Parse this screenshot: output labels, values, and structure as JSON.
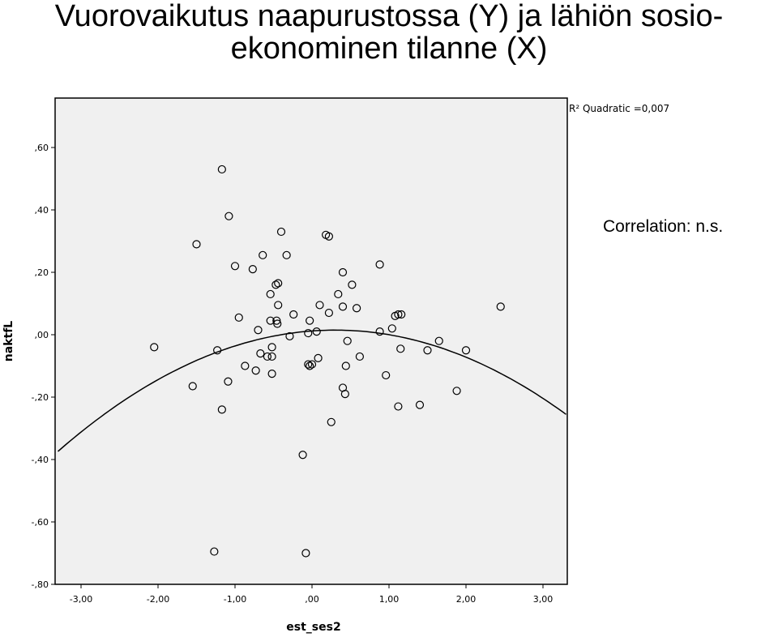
{
  "slide": {
    "title_line1": "Vuorovaikutus naapurustossa (Y) ja lähiön sosio-",
    "title_line2": "ekonominen tilanne (X)",
    "note": "Correlation: n.s."
  },
  "chart_data": {
    "type": "scatter",
    "xlabel": "est_ses2",
    "ylabel": "naktfL",
    "xlim": [
      -3.3,
      3.3
    ],
    "ylim": [
      -0.8,
      0.76
    ],
    "x_ticks": [
      -3,
      -2,
      -1,
      0,
      1,
      2,
      3
    ],
    "x_tick_labels": [
      "-3,00",
      "-2,00",
      "-1,00",
      ",00",
      "1,00",
      "2,00",
      "3,00"
    ],
    "y_ticks": [
      0.6,
      0.4,
      0.2,
      0,
      -0.2,
      -0.4,
      -0.6,
      -0.8
    ],
    "y_tick_labels": [
      ",60",
      ",40",
      ",20",
      ",00",
      "-,20",
      "-,40",
      "-,60",
      "-,80"
    ],
    "background": "#f0f0f0",
    "fit_label": "R² Quadratic =0,007",
    "fit": {
      "type": "quadratic",
      "a": -0.03,
      "b": 0.018,
      "c": 0.012
    },
    "points": [
      {
        "x": -1.17,
        "y": 0.53
      },
      {
        "x": -1.08,
        "y": 0.38
      },
      {
        "x": -1.5,
        "y": 0.29
      },
      {
        "x": -1.0,
        "y": 0.22
      },
      {
        "x": -0.4,
        "y": 0.33
      },
      {
        "x": -0.64,
        "y": 0.255
      },
      {
        "x": -0.33,
        "y": 0.255
      },
      {
        "x": -0.77,
        "y": 0.21
      },
      {
        "x": 0.18,
        "y": 0.32
      },
      {
        "x": 0.22,
        "y": 0.315
      },
      {
        "x": 0.4,
        "y": 0.2
      },
      {
        "x": 0.88,
        "y": 0.225
      },
      {
        "x": -0.47,
        "y": 0.16
      },
      {
        "x": -0.44,
        "y": 0.165
      },
      {
        "x": -0.54,
        "y": 0.13
      },
      {
        "x": 0.52,
        "y": 0.16
      },
      {
        "x": 0.34,
        "y": 0.13
      },
      {
        "x": -0.44,
        "y": 0.095
      },
      {
        "x": 0.1,
        "y": 0.095
      },
      {
        "x": 0.4,
        "y": 0.09
      },
      {
        "x": 0.58,
        "y": 0.085
      },
      {
        "x": -0.95,
        "y": 0.055
      },
      {
        "x": -0.24,
        "y": 0.065
      },
      {
        "x": 0.22,
        "y": 0.07
      },
      {
        "x": -0.54,
        "y": 0.045
      },
      {
        "x": -0.46,
        "y": 0.045
      },
      {
        "x": -0.45,
        "y": 0.035
      },
      {
        "x": -0.03,
        "y": 0.045
      },
      {
        "x": 1.08,
        "y": 0.06
      },
      {
        "x": 1.12,
        "y": 0.065
      },
      {
        "x": 1.16,
        "y": 0.065
      },
      {
        "x": 2.45,
        "y": 0.09
      },
      {
        "x": -0.7,
        "y": 0.015
      },
      {
        "x": -0.29,
        "y": -0.005
      },
      {
        "x": -0.05,
        "y": 0.005
      },
      {
        "x": 0.06,
        "y": 0.01
      },
      {
        "x": 0.88,
        "y": 0.01
      },
      {
        "x": 1.04,
        "y": 0.02
      },
      {
        "x": 0.46,
        "y": -0.02
      },
      {
        "x": 1.65,
        "y": -0.02
      },
      {
        "x": -2.05,
        "y": -0.04
      },
      {
        "x": -1.23,
        "y": -0.05
      },
      {
        "x": -0.52,
        "y": -0.04
      },
      {
        "x": -0.67,
        "y": -0.06
      },
      {
        "x": -0.58,
        "y": -0.07
      },
      {
        "x": -0.52,
        "y": -0.07
      },
      {
        "x": 1.15,
        "y": -0.045
      },
      {
        "x": 1.5,
        "y": -0.05
      },
      {
        "x": 2.0,
        "y": -0.05
      },
      {
        "x": 0.08,
        "y": -0.075
      },
      {
        "x": 0.62,
        "y": -0.07
      },
      {
        "x": -0.05,
        "y": -0.095
      },
      {
        "x": -0.03,
        "y": -0.1
      },
      {
        "x": 0.0,
        "y": -0.095
      },
      {
        "x": -0.87,
        "y": -0.1
      },
      {
        "x": 0.44,
        "y": -0.1
      },
      {
        "x": -0.73,
        "y": -0.115
      },
      {
        "x": -0.52,
        "y": -0.125
      },
      {
        "x": 0.96,
        "y": -0.13
      },
      {
        "x": -1.09,
        "y": -0.15
      },
      {
        "x": -1.55,
        "y": -0.165
      },
      {
        "x": 0.4,
        "y": -0.17
      },
      {
        "x": 0.43,
        "y": -0.19
      },
      {
        "x": 1.88,
        "y": -0.18
      },
      {
        "x": 1.12,
        "y": -0.23
      },
      {
        "x": 1.4,
        "y": -0.225
      },
      {
        "x": -1.17,
        "y": -0.24
      },
      {
        "x": 0.25,
        "y": -0.28
      },
      {
        "x": -0.12,
        "y": -0.385
      },
      {
        "x": -1.27,
        "y": -0.695
      },
      {
        "x": -0.08,
        "y": -0.7
      }
    ]
  }
}
